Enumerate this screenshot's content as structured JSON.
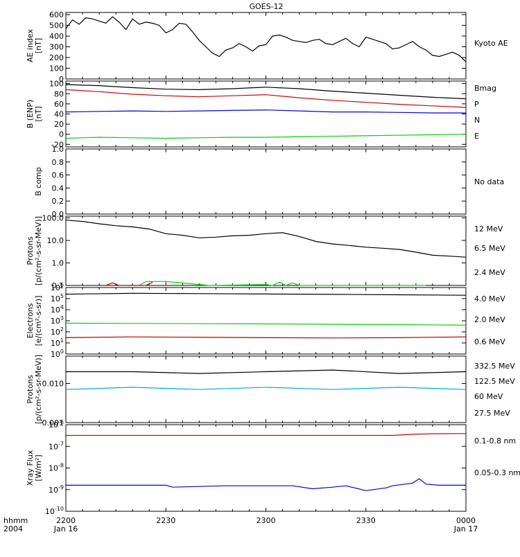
{
  "title": "GOES-12",
  "time_axis": {
    "corner_label_1": "hhmm",
    "corner_label_2": "2004",
    "ticks": [
      {
        "t": 0,
        "hhmm": "2200",
        "date": "Jan 16"
      },
      {
        "t": 30,
        "hhmm": "2230",
        "date": ""
      },
      {
        "t": 60,
        "hhmm": "2300",
        "date": ""
      },
      {
        "t": 90,
        "hhmm": "2330",
        "date": ""
      },
      {
        "t": 120,
        "hhmm": "0000",
        "date": "Jan 17"
      }
    ],
    "range_minutes": [
      0,
      120
    ]
  },
  "colors": {
    "black": "#000000",
    "red": "#d40000",
    "green": "#00d400",
    "blue": "#0000e0",
    "yellow": "#ffff00",
    "cyan": "#00aadd",
    "darkred": "#b00000"
  },
  "panels": {
    "ae": {
      "ylabel": [
        "AE index",
        "[nT]"
      ],
      "legend": [
        {
          "text": "Kyoto AE",
          "color": "#000000"
        }
      ],
      "ticks": [
        "0",
        "100",
        "200",
        "300",
        "400",
        "500",
        "600"
      ]
    },
    "b": {
      "ylabel": [
        "B (ENP)",
        "[nT]"
      ],
      "legend": [
        {
          "text": "Bmag",
          "color": "#000000"
        },
        {
          "text": "P",
          "color": "#d40000"
        },
        {
          "text": "N",
          "color": "#00d400"
        },
        {
          "text": "E",
          "color": "#0000e0"
        }
      ],
      "ticks": [
        "-20",
        "0",
        "20",
        "40",
        "60",
        "80",
        "100"
      ]
    },
    "bcomp": {
      "ylabel": [
        "B comp"
      ],
      "legend": [
        {
          "text": "No data",
          "color": "#000000"
        }
      ],
      "ticks": [
        "0.0",
        "0.2",
        "0.4",
        "0.6",
        "0.8",
        "1.0"
      ]
    },
    "protons": {
      "ylabel": [
        "Protons",
        "[p/(cm²-s-sr-MeV)]"
      ],
      "legend": [
        {
          "text": "12 MeV",
          "color": "#b00000"
        },
        {
          "text": "6.5 MeV",
          "color": "#00d400"
        },
        {
          "text": "2.4 MeV",
          "color": "#000000"
        }
      ],
      "ticks": [
        "0.1",
        "1.0",
        "10.0",
        "100.0"
      ]
    },
    "electrons": {
      "ylabel": [
        "Electrons",
        "[e/(cm²-s-sr)]"
      ],
      "legend": [
        {
          "text": "4.0 MeV",
          "color": "#b00000"
        },
        {
          "text": "2.0 MeV",
          "color": "#00d400"
        },
        {
          "text": "0.6 MeV",
          "color": "#000000"
        }
      ],
      "ticks": [
        {
          "base": "10",
          "exp": "0"
        },
        {
          "base": "10",
          "exp": "1"
        },
        {
          "base": "10",
          "exp": "2"
        },
        {
          "base": "10",
          "exp": "3"
        },
        {
          "base": "10",
          "exp": "4"
        },
        {
          "base": "10",
          "exp": "5"
        },
        {
          "base": "10",
          "exp": "6"
        }
      ]
    },
    "hiprotons": {
      "ylabel": [
        "Protons",
        "[p/(cm²-s-sr-MeV)]"
      ],
      "legend": [
        {
          "text": "332.5 MeV",
          "color": "#b00000"
        },
        {
          "text": "122.5 MeV",
          "color": "#ffff00"
        },
        {
          "text": "60 MeV",
          "color": "#00aadd"
        },
        {
          "text": "27.5 MeV",
          "color": "#000000"
        }
      ],
      "ticks": [
        "0.001",
        "0.010"
      ]
    },
    "xray": {
      "ylabel": [
        "Xray Flux",
        "[W/m²]"
      ],
      "legend": [
        {
          "text": "0.1-0.8 nm",
          "color": "#d40000"
        },
        {
          "text": "0.05-0.3 nm",
          "color": "#0000e0"
        }
      ],
      "ticks": [
        {
          "base": "10",
          "exp": "-10"
        },
        {
          "base": "10",
          "exp": "-9"
        },
        {
          "base": "10",
          "exp": "-8"
        },
        {
          "base": "10",
          "exp": "-7"
        },
        {
          "base": "10",
          "exp": "-6"
        }
      ]
    }
  },
  "chart_data": [
    {
      "type": "line",
      "title": "GOES-12",
      "panel": "ae",
      "ylabel": "AE index [nT]",
      "ylim": [
        0,
        620
      ],
      "x_units": "minutes after 2200 UT, Jan 16 2004",
      "series": [
        {
          "name": "Kyoto AE",
          "color": "#000000",
          "x": [
            0,
            2,
            4,
            6,
            8,
            10,
            12,
            14,
            16,
            18,
            20,
            22,
            24,
            26,
            28,
            30,
            32,
            34,
            36,
            38,
            40,
            42,
            44,
            46,
            48,
            50,
            52,
            54,
            56,
            58,
            60,
            62,
            64,
            66,
            68,
            70,
            72,
            74,
            76,
            78,
            80,
            82,
            84,
            86,
            88,
            90,
            92,
            94,
            96,
            98,
            100,
            102,
            104,
            106,
            108,
            110,
            112,
            114,
            116,
            118,
            120
          ],
          "values": [
            470,
            550,
            510,
            570,
            560,
            540,
            520,
            580,
            530,
            460,
            560,
            510,
            530,
            520,
            500,
            430,
            460,
            520,
            510,
            440,
            360,
            300,
            240,
            210,
            270,
            290,
            330,
            300,
            260,
            310,
            320,
            400,
            410,
            390,
            360,
            350,
            340,
            360,
            370,
            330,
            320,
            350,
            380,
            330,
            300,
            390,
            370,
            350,
            330,
            280,
            290,
            320,
            350,
            300,
            270,
            220,
            210,
            230,
            250,
            220,
            160
          ]
        }
      ]
    },
    {
      "type": "line",
      "panel": "b",
      "ylabel": "B (ENP) [nT]",
      "ylim": [
        -25,
        105
      ],
      "series": [
        {
          "name": "Bmag",
          "color": "#000000",
          "x": [
            0,
            10,
            20,
            30,
            40,
            50,
            60,
            70,
            80,
            90,
            100,
            110,
            120
          ],
          "values": [
            98,
            96,
            92,
            89,
            88,
            90,
            93,
            90,
            85,
            81,
            77,
            73,
            70
          ]
        },
        {
          "name": "P",
          "color": "#d40000",
          "x": [
            0,
            10,
            20,
            30,
            40,
            50,
            60,
            70,
            80,
            90,
            100,
            110,
            120
          ],
          "values": [
            88,
            84,
            79,
            76,
            74,
            76,
            78,
            72,
            67,
            63,
            59,
            56,
            53
          ]
        },
        {
          "name": "N",
          "color": "#00d400",
          "x": [
            0,
            10,
            20,
            30,
            40,
            50,
            60,
            70,
            80,
            90,
            100,
            110,
            120
          ],
          "values": [
            -8,
            -6,
            -7,
            -8,
            -7,
            -6,
            -6,
            -5,
            -4,
            -3,
            -2,
            -1,
            0
          ]
        },
        {
          "name": "E",
          "color": "#0000e0",
          "x": [
            0,
            10,
            20,
            30,
            40,
            50,
            60,
            70,
            80,
            90,
            100,
            110,
            120
          ],
          "values": [
            44,
            45,
            46,
            45,
            46,
            47,
            48,
            46,
            44,
            44,
            43,
            42,
            42
          ]
        }
      ]
    },
    {
      "type": "line",
      "panel": "protons",
      "ylabel": "Protons [p/(cm2-s-sr-MeV)]",
      "yscale": "log",
      "ylim": [
        0.1,
        120
      ],
      "series": [
        {
          "name": "2.4 MeV",
          "color": "#000000",
          "x": [
            0,
            5,
            10,
            15,
            20,
            25,
            30,
            35,
            40,
            45,
            50,
            55,
            60,
            65,
            70,
            75,
            80,
            85,
            90,
            95,
            100,
            105,
            110,
            115,
            120
          ],
          "values": [
            80,
            70,
            55,
            45,
            40,
            32,
            20,
            17,
            13,
            14,
            16,
            17,
            20,
            22,
            15,
            9,
            7,
            6,
            5,
            4.5,
            4,
            3,
            2.2,
            2,
            1.8
          ]
        },
        {
          "name": "6.5 MeV",
          "color": "#00d400",
          "x": [
            22,
            24,
            30,
            37,
            43,
            60,
            62,
            64,
            66,
            68,
            70,
            88,
            96,
            100,
            108
          ],
          "values": [
            0.1,
            0.15,
            0.15,
            0.12,
            0.1,
            0.11,
            0.1,
            0.14,
            0.1,
            0.13,
            0.1,
            0.1,
            0.1,
            0.1,
            0.1
          ]
        },
        {
          "name": "12 MeV",
          "color": "#b00000",
          "x": [
            12,
            14,
            16,
            24,
            26
          ],
          "values": [
            0.1,
            0.13,
            0.1,
            0.1,
            0.14
          ]
        }
      ]
    },
    {
      "type": "line",
      "panel": "electrons",
      "ylabel": "Electrons [e/(cm2-s-sr)]",
      "yscale": "log",
      "ylim": [
        1,
        1000000
      ],
      "series": [
        {
          "name": "0.6 MeV",
          "color": "#000000",
          "x": [
            0,
            20,
            40,
            60,
            80,
            100,
            120
          ],
          "values": [
            250000,
            300000,
            280000,
            260000,
            240000,
            220000,
            200000
          ]
        },
        {
          "name": "2.0 MeV",
          "color": "#00d400",
          "x": [
            0,
            20,
            40,
            60,
            80,
            100,
            120
          ],
          "values": [
            600,
            580,
            550,
            520,
            480,
            450,
            400
          ]
        },
        {
          "name": "4.0 MeV",
          "color": "#b00000",
          "x": [
            0,
            20,
            40,
            60,
            80,
            100,
            120
          ],
          "values": [
            30,
            35,
            32,
            30,
            28,
            30,
            35
          ]
        }
      ]
    },
    {
      "type": "line",
      "panel": "hiprotons",
      "ylabel": "Protons [p/(cm2-s-sr-MeV)]",
      "yscale": "log",
      "ylim": [
        0.001,
        0.05
      ],
      "series": [
        {
          "name": "27.5 MeV",
          "color": "#000000",
          "x": [
            0,
            20,
            40,
            60,
            80,
            100,
            120
          ],
          "values": [
            0.02,
            0.02,
            0.018,
            0.02,
            0.022,
            0.018,
            0.02
          ]
        },
        {
          "name": "60 MeV",
          "color": "#00aadd",
          "x": [
            0,
            20,
            40,
            60,
            80,
            100,
            120
          ],
          "values": [
            0.007,
            0.008,
            0.007,
            0.008,
            0.007,
            0.008,
            0.007
          ]
        }
      ]
    },
    {
      "type": "line",
      "panel": "xray",
      "ylabel": "Xray Flux [W/m2]",
      "yscale": "log",
      "ylim": [
        1e-10,
        1e-06
      ],
      "series": [
        {
          "name": "0.1-0.8 nm",
          "color": "#d40000",
          "x": [
            0,
            20,
            40,
            60,
            80,
            98,
            104,
            110,
            120
          ],
          "values": [
            3.2e-07,
            3.2e-07,
            3.2e-07,
            3.2e-07,
            3.2e-07,
            3.2e-07,
            3.6e-07,
            3.8e-07,
            3.9e-07
          ]
        },
        {
          "name": "0.05-0.3 nm",
          "color": "#0000e0",
          "x": [
            0,
            30,
            32,
            48,
            68,
            74,
            80,
            84,
            90,
            96,
            98,
            104,
            106,
            108,
            112,
            120
          ],
          "values": [
            1.6e-09,
            1.6e-09,
            1.3e-09,
            1.5e-09,
            1.5e-09,
            1.1e-09,
            1.3e-09,
            1.5e-09,
            9e-10,
            1.2e-09,
            1.5e-09,
            2e-09,
            3.2e-09,
            1.8e-09,
            1.6e-09,
            1.6e-09
          ]
        }
      ]
    }
  ]
}
